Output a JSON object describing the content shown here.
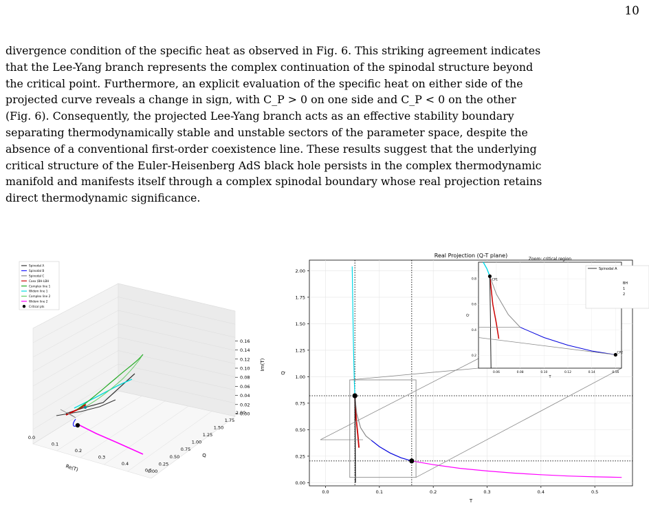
{
  "page_number": "10",
  "paragraph_lines": [
    "divergence condition of the specific heat as observed in Fig. 6. This striking agreement indicates",
    "that the Lee-Yang branch represents the complex continuation of the spinodal structure beyond",
    "the critical point. Furthermore, an explicit evaluation of the specific heat on either side of the",
    "projected curve reveals a change in sign, with C_P > 0 on one side and C_P < 0 on the other",
    "(Fig. 6). Consequently, the projected Lee-Yang branch acts as an effective stability boundary",
    "separating thermodynamically stable and unstable sectors of the parameter space, despite the",
    "absence of a conventional first-order coexistence line. These results suggest that the underlying",
    "critical structure of the Euler-Heisenberg AdS black hole persists in the complex thermodynamic",
    "manifold and manifests itself through a complex spinodal boundary whose real projection retains",
    "direct thermodynamic significance."
  ],
  "left_figure": {
    "legend": [
      "Spinodal A",
      "Spinodal B",
      "Spinodal C",
      "Coex (BH-LBH",
      "Complex line 1",
      "Widom line 1",
      "Complex line 2",
      "Widom line 2",
      "Critical pts"
    ],
    "legend_colors": [
      "#333333",
      "#1a1aff",
      "#888888",
      "#cc0000",
      "#22aa22",
      "#00dddd",
      "#66cc66",
      "#ff00ff",
      "#000000"
    ],
    "re_axis_label": "Re(T)",
    "re_ticks": [
      "0.0",
      "0.1",
      "0.2",
      "0.3",
      "0.4",
      "0.5"
    ],
    "q_axis_label": "Q",
    "q_ticks": [
      "0.00",
      "0.25",
      "0.50",
      "0.75",
      "1.00",
      "1.25",
      "1.50",
      "1.75",
      "2.00"
    ],
    "im_axis_label": "Im(T)",
    "im_ticks": [
      "0.00",
      "0.02",
      "0.04",
      "0.06",
      "0.08",
      "0.10",
      "0.12",
      "0.14",
      "0.16"
    ]
  },
  "chart_data": {
    "type": "line",
    "title": "Real Projection (Q-T plane)",
    "xlabel": "T",
    "ylabel": "Q",
    "xlim": [
      -0.03,
      0.57
    ],
    "ylim": [
      -0.03,
      2.1
    ],
    "x_ticks": [
      "0.0",
      "0.1",
      "0.2",
      "0.3",
      "0.4",
      "0.5"
    ],
    "y_ticks": [
      "0.00",
      "0.25",
      "0.50",
      "0.75",
      "1.00",
      "1.25",
      "1.50",
      "1.75",
      "2.00"
    ],
    "grid": true,
    "series": [
      {
        "key": "cyan",
        "color": "#00d8e8",
        "points": [
          [
            0.0495,
            2.04
          ],
          [
            0.0505,
            1.7
          ],
          [
            0.0515,
            1.4
          ],
          [
            0.0525,
            1.15
          ],
          [
            0.0535,
            0.95
          ],
          [
            0.0545,
            0.82
          ]
        ]
      },
      {
        "key": "red",
        "color": "#cc0000",
        "points": [
          [
            0.0545,
            0.82
          ],
          [
            0.057,
            0.6
          ],
          [
            0.06,
            0.45
          ],
          [
            0.062,
            0.33
          ]
        ]
      },
      {
        "key": "gray",
        "color": "#888888",
        "points": [
          [
            0.0545,
            0.82
          ],
          [
            0.058,
            0.65
          ],
          [
            0.065,
            0.52
          ],
          [
            0.075,
            0.44
          ],
          [
            0.085,
            0.4
          ]
        ]
      },
      {
        "key": "blue",
        "color": "#0000dd",
        "points": [
          [
            0.085,
            0.4
          ],
          [
            0.1,
            0.34
          ],
          [
            0.12,
            0.28
          ],
          [
            0.14,
            0.235
          ],
          [
            0.16,
            0.205
          ]
        ]
      },
      {
        "key": "magenta",
        "color": "#ff00ff",
        "points": [
          [
            0.16,
            0.205
          ],
          [
            0.2,
            0.17
          ],
          [
            0.25,
            0.135
          ],
          [
            0.3,
            0.11
          ],
          [
            0.35,
            0.09
          ],
          [
            0.4,
            0.075
          ],
          [
            0.45,
            0.063
          ],
          [
            0.5,
            0.055
          ],
          [
            0.55,
            0.05
          ]
        ]
      },
      {
        "key": "black",
        "color": "#000000",
        "points": [
          [
            0.0545,
            0.82
          ],
          [
            0.055,
            0.4
          ],
          [
            0.0555,
            0.0
          ]
        ]
      }
    ],
    "critical_points": [
      [
        0.0545,
        0.82
      ],
      [
        0.16,
        0.205
      ]
    ],
    "vlines": [
      0.0545,
      0.16
    ],
    "hlines": [
      0.82,
      0.205
    ],
    "zoom_rect": {
      "x0": 0.045,
      "x1": 0.168,
      "y0": 0.05,
      "y1": 0.97
    },
    "inset": {
      "title": "Zoom: critical region",
      "xlabel": "T",
      "ylabel": "Q",
      "x_ticks": [
        "0.06",
        "0.08",
        "0.10",
        "0.12",
        "0.14",
        "0.16"
      ],
      "y_ticks": [
        "0.2",
        "0.4",
        "0.6",
        "0.8"
      ],
      "legend": [
        "Spinodal A"
      ],
      "legend_fragments": [
        "BH",
        "1",
        "2"
      ],
      "annotations": [
        "CP1",
        "CP2"
      ]
    }
  }
}
